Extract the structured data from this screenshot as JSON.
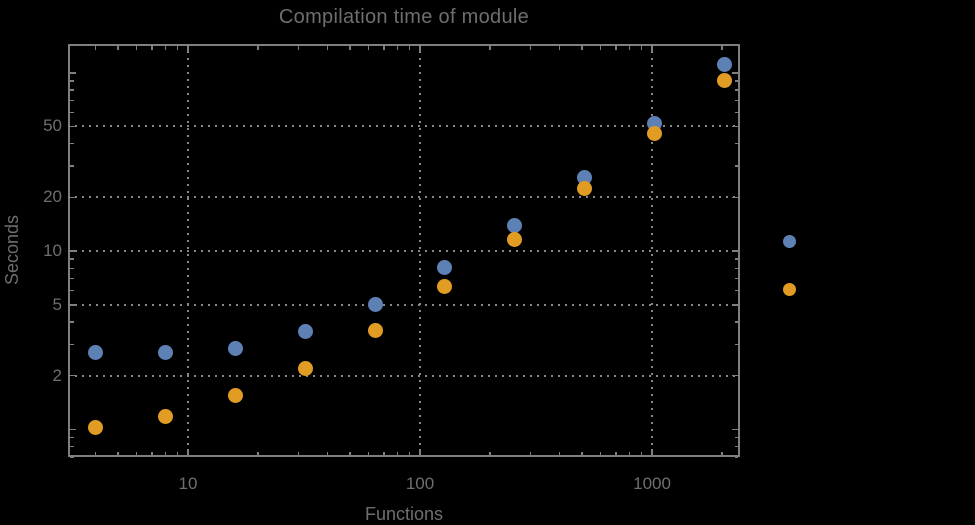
{
  "title": "Compilation time of module",
  "colors": {
    "background": "#000000",
    "frame": "#7f7f7f",
    "gridline": "#878787",
    "text": "#6e6e6e",
    "series_blue": "#5e81b5",
    "series_orange": "#e19c24"
  },
  "chart_data": {
    "type": "scatter",
    "title": "Compilation time of module",
    "xlabel": "Functions",
    "ylabel": "Seconds",
    "x_scale": "log",
    "y_scale": "log",
    "grid": "dotted",
    "x": [
      4,
      8,
      16,
      32,
      64,
      128,
      256,
      512,
      1024,
      2048
    ],
    "series": [
      {
        "name": "series-blue",
        "color": "#5e81b5",
        "values": [
          2.7,
          2.7,
          2.85,
          3.55,
          5.0,
          8.1,
          13.9,
          26,
          52,
          111
        ]
      },
      {
        "name": "series-orange",
        "color": "#e19c24",
        "values": [
          1.03,
          1.18,
          1.55,
          2.2,
          3.6,
          6.3,
          11.6,
          22.3,
          45.5,
          90
        ]
      }
    ],
    "x_ticks": [
      10,
      100,
      1000
    ],
    "x_tick_labels": [
      "10",
      "100",
      "1000"
    ],
    "y_ticks": [
      2,
      5,
      10,
      20,
      50
    ],
    "y_tick_labels": [
      "2",
      "5",
      "10",
      "20",
      "50"
    ],
    "y_major_unlabeled_ticks": [
      1,
      100
    ],
    "xlim": [
      3.04,
      2394
    ],
    "ylim": [
      0.7,
      145
    ],
    "legend": {
      "position": "right",
      "markers": [
        {
          "name": "legend-marker-blue",
          "color": "#5e81b5"
        },
        {
          "name": "legend-marker-orange",
          "color": "#e19c24"
        }
      ]
    }
  }
}
